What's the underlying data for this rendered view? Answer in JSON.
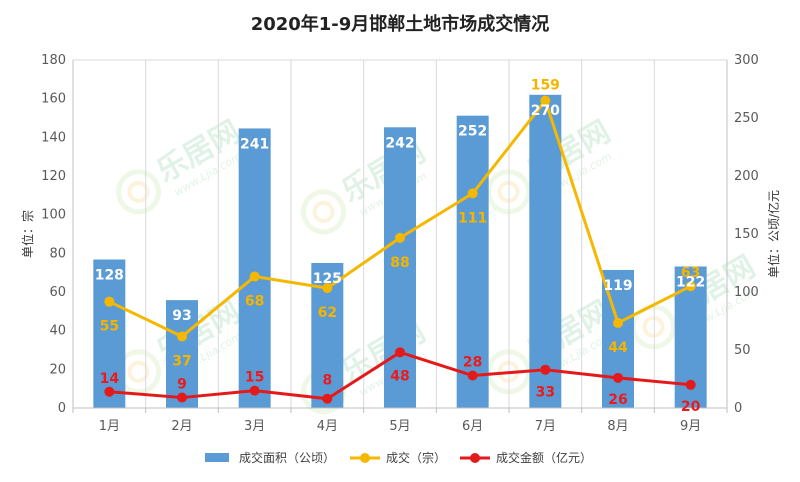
{
  "chart_data": {
    "type": "bar",
    "title": "2020年1-9月邯郸土地市场成交情况",
    "categories": [
      "1月",
      "2月",
      "3月",
      "4月",
      "5月",
      "6月",
      "7月",
      "8月",
      "9月"
    ],
    "y_left": {
      "label": "单位：宗",
      "range": [
        0,
        180
      ],
      "ticks": [
        "0",
        "20",
        "40",
        "60",
        "80",
        "100",
        "120",
        "140",
        "160",
        "180"
      ]
    },
    "y_right": {
      "label": "单位：公顷/亿元",
      "range": [
        0,
        300
      ],
      "ticks": [
        "0",
        "50",
        "100",
        "150",
        "200",
        "250",
        "300"
      ]
    },
    "grid": "vertical",
    "legend_position": "bottom",
    "series": [
      {
        "name": "成交面积（公顷）",
        "type": "bar",
        "axis": "right",
        "color": "#5b9bd5",
        "values": [
          128,
          93,
          241,
          125,
          242,
          252,
          270,
          119,
          122
        ]
      },
      {
        "name": "成交（宗）",
        "type": "line",
        "axis": "left",
        "color": "#f5b800",
        "values": [
          55,
          37,
          68,
          62,
          88,
          111,
          159,
          44,
          63
        ]
      },
      {
        "name": "成交金额（亿元）",
        "type": "line",
        "axis": "right",
        "color": "#e41a1a",
        "values": [
          14,
          9,
          15,
          8,
          48,
          28,
          33,
          26,
          20
        ]
      }
    ]
  },
  "watermark": {
    "text": "乐居网",
    "url": "www.Ljia.com"
  }
}
